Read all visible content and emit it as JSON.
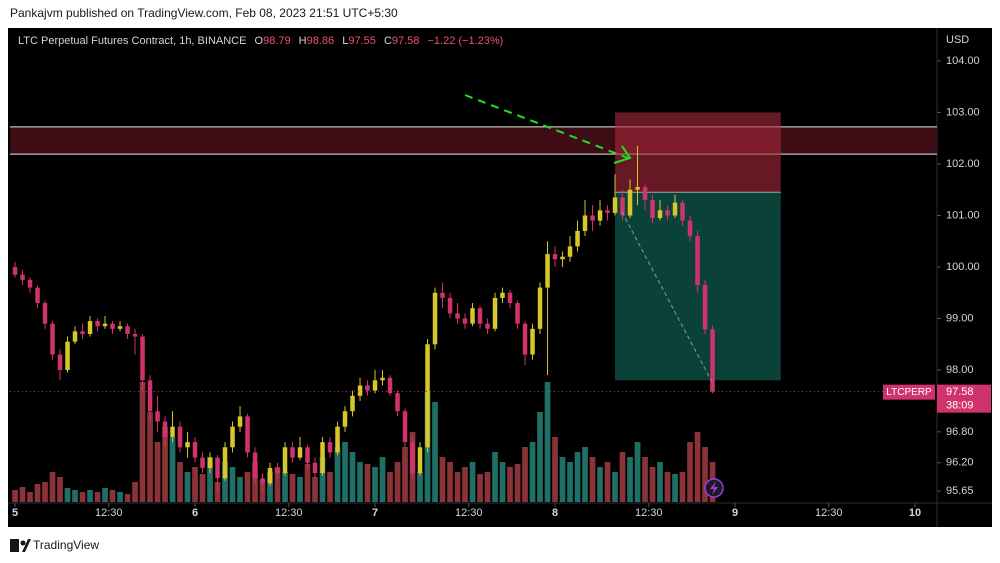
{
  "publisher_line": "Pankajvm published on TradingView.com, Feb 08, 2023 21:51 UTC+5:30",
  "footer_brand": "TradingView",
  "chart_data": {
    "type": "candlestick",
    "title": "LTC Perpetual Futures Contract, 1h, BINANCE",
    "legend_labels": [
      "O",
      "H",
      "L",
      "C"
    ],
    "change": {
      "value": -1.22,
      "label": "−1.22"
    },
    "change_pct": {
      "value": -1.23,
      "label": "(−1.23%)"
    },
    "currency": "USD",
    "symbol_tag": "LTCPERP",
    "countdown": "38:09",
    "up_color": "#d8c72a",
    "down_color": "#d0336c",
    "volume_up_color": "#1f6f66",
    "volume_down_color": "#8a3338",
    "ohlc": [
      [
        100.0,
        100.1,
        99.8,
        99.85
      ],
      [
        99.85,
        99.95,
        99.65,
        99.75
      ],
      [
        99.75,
        99.8,
        99.5,
        99.6
      ],
      [
        99.6,
        99.65,
        99.2,
        99.3
      ],
      [
        99.3,
        99.35,
        98.8,
        98.9
      ],
      [
        98.9,
        98.95,
        98.2,
        98.3
      ],
      [
        98.3,
        98.4,
        97.8,
        98.0
      ],
      [
        98.0,
        98.65,
        97.95,
        98.55
      ],
      [
        98.55,
        98.85,
        98.5,
        98.75
      ],
      [
        98.75,
        98.9,
        98.6,
        98.7
      ],
      [
        98.7,
        99.05,
        98.65,
        98.95
      ],
      [
        98.95,
        99.0,
        98.75,
        98.85
      ],
      [
        98.85,
        99.05,
        98.8,
        98.9
      ],
      [
        98.9,
        98.95,
        98.7,
        98.8
      ],
      [
        98.8,
        98.95,
        98.75,
        98.85
      ],
      [
        98.85,
        98.9,
        98.6,
        98.7
      ],
      [
        98.7,
        98.8,
        98.3,
        98.65
      ],
      [
        98.65,
        98.7,
        97.6,
        97.8
      ],
      [
        97.8,
        97.9,
        97.0,
        97.2
      ],
      [
        97.2,
        97.5,
        96.8,
        97.0
      ],
      [
        97.0,
        97.1,
        96.5,
        96.7
      ],
      [
        96.7,
        97.2,
        96.6,
        96.9
      ],
      [
        96.9,
        97.0,
        96.4,
        96.5
      ],
      [
        96.5,
        96.8,
        96.3,
        96.6
      ],
      [
        96.6,
        96.7,
        96.2,
        96.3
      ],
      [
        96.3,
        96.4,
        96.0,
        96.1
      ],
      [
        96.1,
        96.4,
        96.0,
        96.3
      ],
      [
        96.3,
        96.35,
        95.6,
        95.9
      ],
      [
        95.9,
        96.6,
        95.85,
        96.5
      ],
      [
        96.5,
        97.0,
        96.4,
        96.9
      ],
      [
        96.9,
        97.3,
        96.8,
        97.1
      ],
      [
        97.1,
        97.15,
        96.3,
        96.4
      ],
      [
        96.4,
        96.5,
        95.8,
        95.9
      ],
      [
        95.9,
        96.0,
        95.6,
        95.8
      ],
      [
        95.8,
        96.2,
        95.75,
        96.1
      ],
      [
        96.1,
        96.2,
        95.9,
        96.0
      ],
      [
        96.0,
        96.6,
        95.95,
        96.5
      ],
      [
        96.5,
        96.6,
        96.2,
        96.3
      ],
      [
        96.3,
        96.7,
        96.25,
        96.5
      ],
      [
        96.5,
        96.55,
        96.1,
        96.2
      ],
      [
        96.2,
        96.3,
        95.9,
        96.0
      ],
      [
        96.0,
        96.7,
        95.95,
        96.6
      ],
      [
        96.6,
        96.7,
        96.3,
        96.4
      ],
      [
        96.4,
        97.0,
        96.35,
        96.9
      ],
      [
        96.9,
        97.3,
        96.8,
        97.2
      ],
      [
        97.2,
        97.6,
        97.1,
        97.5
      ],
      [
        97.5,
        97.85,
        97.4,
        97.7
      ],
      [
        97.7,
        97.8,
        97.5,
        97.6
      ],
      [
        97.6,
        98.0,
        97.55,
        97.8
      ],
      [
        97.8,
        98.0,
        97.7,
        97.85
      ],
      [
        97.85,
        97.9,
        97.5,
        97.55
      ],
      [
        97.55,
        97.6,
        97.1,
        97.2
      ],
      [
        97.2,
        97.25,
        96.5,
        96.6
      ],
      [
        96.6,
        96.7,
        95.9,
        96.0
      ],
      [
        96.0,
        96.6,
        95.95,
        96.5
      ],
      [
        96.5,
        98.6,
        96.4,
        98.5
      ],
      [
        98.5,
        99.6,
        98.4,
        99.5
      ],
      [
        99.5,
        99.7,
        99.2,
        99.4
      ],
      [
        99.4,
        99.5,
        99.0,
        99.1
      ],
      [
        99.1,
        99.3,
        98.9,
        99.0
      ],
      [
        99.0,
        99.1,
        98.8,
        98.9
      ],
      [
        98.9,
        99.3,
        98.85,
        99.2
      ],
      [
        99.2,
        99.25,
        98.8,
        98.9
      ],
      [
        98.9,
        99.0,
        98.7,
        98.8
      ],
      [
        98.8,
        99.5,
        98.75,
        99.4
      ],
      [
        99.4,
        99.6,
        99.3,
        99.5
      ],
      [
        99.5,
        99.55,
        99.2,
        99.3
      ],
      [
        99.3,
        99.35,
        98.8,
        98.9
      ],
      [
        98.9,
        98.95,
        98.1,
        98.3
      ],
      [
        98.3,
        98.9,
        98.2,
        98.8
      ],
      [
        98.8,
        99.7,
        98.7,
        99.6
      ],
      [
        99.6,
        100.5,
        97.9,
        100.25
      ],
      [
        100.25,
        100.4,
        100.0,
        100.15
      ],
      [
        100.15,
        100.3,
        100.0,
        100.2
      ],
      [
        100.2,
        100.6,
        100.1,
        100.4
      ],
      [
        100.4,
        100.9,
        100.3,
        100.7
      ],
      [
        100.7,
        101.3,
        100.6,
        101.0
      ],
      [
        101.0,
        101.2,
        100.7,
        100.9
      ],
      [
        100.9,
        101.3,
        100.8,
        101.1
      ],
      [
        101.1,
        101.2,
        100.9,
        101.05
      ],
      [
        101.05,
        101.8,
        101.0,
        101.35
      ],
      [
        101.35,
        101.5,
        100.9,
        101.0
      ],
      [
        101.0,
        101.7,
        100.95,
        101.5
      ],
      [
        101.5,
        102.35,
        101.2,
        101.55
      ],
      [
        101.55,
        101.6,
        101.1,
        101.3
      ],
      [
        101.3,
        101.4,
        100.85,
        100.95
      ],
      [
        100.95,
        101.3,
        100.9,
        101.1
      ],
      [
        101.1,
        101.2,
        100.9,
        101.0
      ],
      [
        101.0,
        101.4,
        100.95,
        101.25
      ],
      [
        101.25,
        101.3,
        100.8,
        100.9
      ],
      [
        100.9,
        101.0,
        100.5,
        100.6
      ],
      [
        100.6,
        100.7,
        99.5,
        99.65
      ],
      [
        99.65,
        99.75,
        98.7,
        98.79
      ],
      [
        98.79,
        98.86,
        97.55,
        97.58
      ]
    ],
    "volume": [
      12,
      15,
      10,
      18,
      20,
      30,
      25,
      14,
      12,
      10,
      12,
      10,
      14,
      12,
      10,
      8,
      20,
      120,
      90,
      60,
      75,
      65,
      40,
      30,
      35,
      28,
      45,
      20,
      40,
      35,
      25,
      30,
      40,
      22,
      30,
      35,
      30,
      28,
      25,
      38,
      25,
      45,
      30,
      55,
      60,
      50,
      40,
      38,
      35,
      45,
      30,
      40,
      55,
      70,
      30,
      110,
      100,
      45,
      40,
      30,
      35,
      40,
      28,
      30,
      50,
      40,
      35,
      38,
      55,
      60,
      90,
      120,
      65,
      45,
      40,
      50,
      55,
      45,
      35,
      40,
      30,
      50,
      45,
      60,
      45,
      35,
      40,
      30,
      28,
      30,
      60,
      70,
      55,
      40
    ],
    "ylim": [
      95.38,
      104.6
    ],
    "yticks": [
      {
        "value": 104,
        "label": "104.00"
      },
      {
        "value": 103,
        "label": "103.00"
      },
      {
        "value": 102,
        "label": "102.00"
      },
      {
        "value": 101,
        "label": "101.00"
      },
      {
        "value": 100,
        "label": "100.00"
      },
      {
        "value": 99,
        "label": "99.00"
      },
      {
        "value": 98,
        "label": "98.00"
      },
      {
        "value": 96.8,
        "label": "96.80"
      },
      {
        "value": 96.2,
        "label": "96.20"
      },
      {
        "value": 95.65,
        "label": "95.65"
      }
    ],
    "xlim": [
      -0.67,
      122.93
    ],
    "xticks": [
      {
        "value": 0,
        "label": "5"
      },
      {
        "value": 12.5,
        "label": "12:30"
      },
      {
        "value": 24,
        "label": "6"
      },
      {
        "value": 36.5,
        "label": "12:30"
      },
      {
        "value": 48,
        "label": "7"
      },
      {
        "value": 60.5,
        "label": "12:30"
      },
      {
        "value": 72,
        "label": "8"
      },
      {
        "value": 84.5,
        "label": "12:30"
      },
      {
        "value": 96,
        "label": "9"
      },
      {
        "value": 108.5,
        "label": "12:30"
      },
      {
        "value": 120,
        "label": "10"
      }
    ],
    "resistance_zone": {
      "low": 102.19,
      "high": 102.72
    },
    "short_position": {
      "start": 80,
      "end": 102.1,
      "entry": 101.45,
      "stop": 103.0,
      "target": 97.8
    }
  }
}
